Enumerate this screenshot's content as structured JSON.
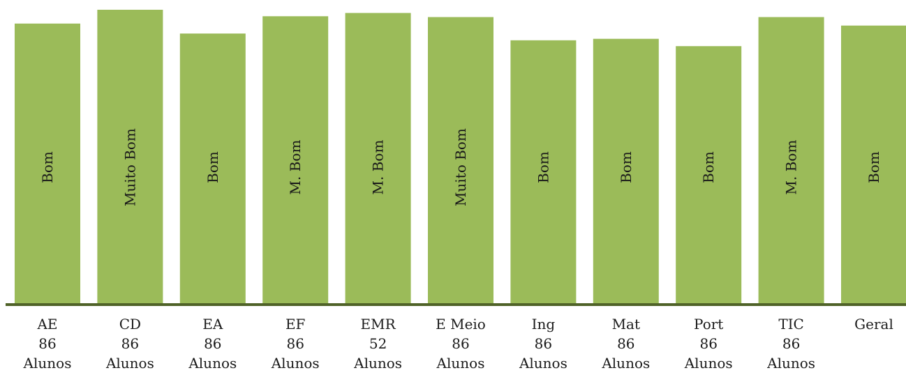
{
  "chart_data": {
    "type": "bar",
    "title": "",
    "xlabel": "",
    "ylabel": "",
    "ylim": [
      0,
      100
    ],
    "grid": false,
    "legend": "none",
    "colors": {
      "bar": "#9bbb59",
      "axis": "#4f6228",
      "text": "#1a1a1a"
    },
    "categories": [
      {
        "name": "AE",
        "count": "86",
        "unit": "Alunos"
      },
      {
        "name": "CD",
        "count": "86",
        "unit": "Alunos"
      },
      {
        "name": "EA",
        "count": "86",
        "unit": "Alunos"
      },
      {
        "name": "EF",
        "count": "86",
        "unit": "Alunos"
      },
      {
        "name": "EMR",
        "count": "52",
        "unit": "Alunos"
      },
      {
        "name": "E Meio",
        "count": "86",
        "unit": "Alunos"
      },
      {
        "name": "Ing",
        "count": "86",
        "unit": "Alunos"
      },
      {
        "name": "Mat",
        "count": "86",
        "unit": "Alunos"
      },
      {
        "name": "Port",
        "count": "86",
        "unit": "Alunos"
      },
      {
        "name": "TIC",
        "count": "86",
        "unit": "Alunos"
      },
      {
        "name": "Geral",
        "count": "",
        "unit": ""
      }
    ],
    "values": [
      95.3,
      100,
      91.9,
      97.8,
      98.9,
      97.5,
      89.6,
      90.1,
      87.6,
      97.5,
      94.6
    ],
    "data_labels": [
      "Bom",
      "Muito Bom",
      "Bom",
      "M. Bom",
      "M. Bom",
      "Muito Bom",
      "Bom",
      "Bom",
      "Bom",
      "M. Bom",
      "Bom"
    ]
  }
}
